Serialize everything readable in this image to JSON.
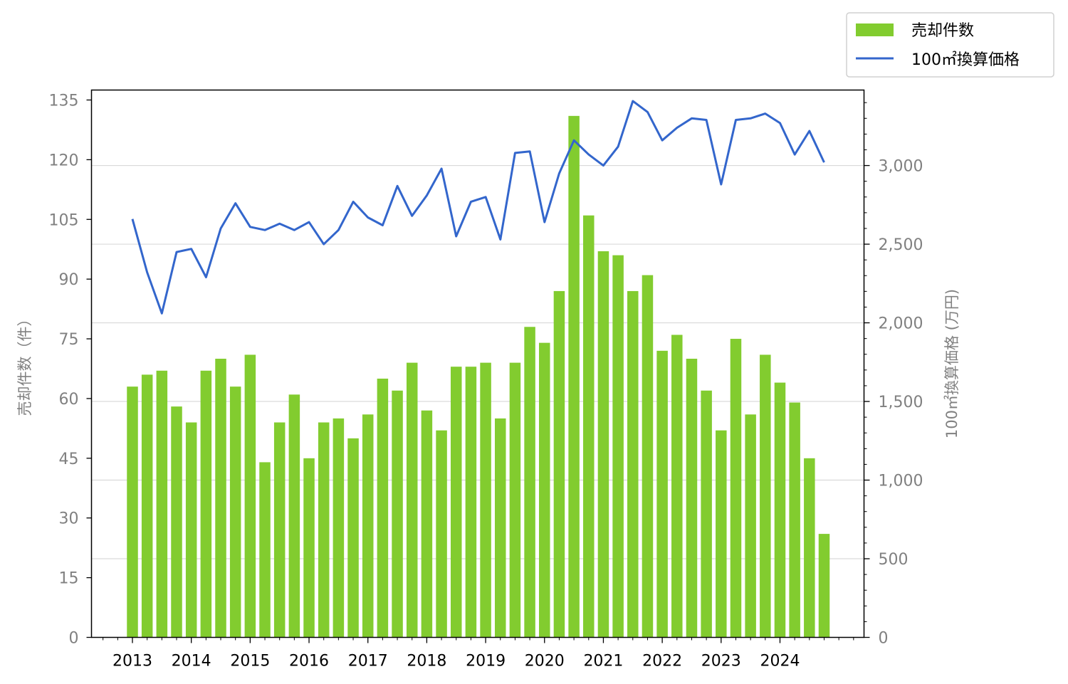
{
  "chart_data": {
    "type": "bar+line",
    "x": [
      "2013-Q1",
      "2013-Q2",
      "2013-Q3",
      "2013-Q4",
      "2014-Q1",
      "2014-Q2",
      "2014-Q3",
      "2014-Q4",
      "2015-Q1",
      "2015-Q2",
      "2015-Q3",
      "2015-Q4",
      "2016-Q1",
      "2016-Q2",
      "2016-Q3",
      "2016-Q4",
      "2017-Q1",
      "2017-Q2",
      "2017-Q3",
      "2017-Q4",
      "2018-Q1",
      "2018-Q2",
      "2018-Q3",
      "2018-Q4",
      "2019-Q1",
      "2019-Q2",
      "2019-Q3",
      "2019-Q4",
      "2020-Q1",
      "2020-Q2",
      "2020-Q3",
      "2020-Q4",
      "2021-Q1",
      "2021-Q2",
      "2021-Q3",
      "2021-Q4",
      "2022-Q1",
      "2022-Q2",
      "2022-Q3",
      "2022-Q4",
      "2023-Q1",
      "2023-Q2",
      "2023-Q3",
      "2023-Q4",
      "2024-Q1",
      "2024-Q2",
      "2024-Q3",
      "2024-Q4"
    ],
    "x_tick_labels": [
      "2013",
      "2014",
      "2015",
      "2016",
      "2017",
      "2018",
      "2019",
      "2020",
      "2021",
      "2022",
      "2023",
      "2024"
    ],
    "series": [
      {
        "name": "売却件数",
        "type": "bar",
        "axis": "left",
        "color": "#82cc2f",
        "values": [
          63,
          66,
          67,
          58,
          54,
          67,
          70,
          63,
          71,
          44,
          54,
          61,
          45,
          54,
          55,
          50,
          56,
          65,
          62,
          69,
          57,
          52,
          68,
          68,
          69,
          55,
          69,
          78,
          74,
          87,
          131,
          106,
          97,
          96,
          87,
          91,
          72,
          76,
          70,
          62,
          52,
          75,
          56,
          71,
          64,
          59,
          45,
          26
        ]
      },
      {
        "name": "100㎡換算価格",
        "type": "line",
        "axis": "right",
        "color": "#3366cc",
        "values": [
          2660,
          2320,
          2060,
          2450,
          2470,
          2290,
          2600,
          2760,
          2610,
          2590,
          2630,
          2590,
          2640,
          2500,
          2590,
          2770,
          2670,
          2620,
          2870,
          2680,
          2810,
          2980,
          2550,
          2770,
          2800,
          2530,
          3080,
          3090,
          2640,
          2950,
          3160,
          3070,
          3000,
          3120,
          3410,
          3340,
          3160,
          3240,
          3300,
          3290,
          2880,
          3290,
          3300,
          3330,
          3270,
          3070,
          3220,
          3020
        ]
      }
    ],
    "y_left": {
      "label": "売却件数（件）",
      "lim": [
        0,
        137.5
      ],
      "ticks": [
        "0",
        "15",
        "30",
        "45",
        "60",
        "75",
        "90",
        "105",
        "120",
        "135"
      ]
    },
    "y_right": {
      "label": "100㎡換算価格 (万円)",
      "lim": [
        0,
        3480
      ],
      "ticks": [
        "0",
        "500",
        "1,000",
        "1,500",
        "2,000",
        "2,500",
        "3,000"
      ]
    },
    "grid": "horizontal (right axis major ticks)",
    "legend": "top-right, outside plot"
  }
}
